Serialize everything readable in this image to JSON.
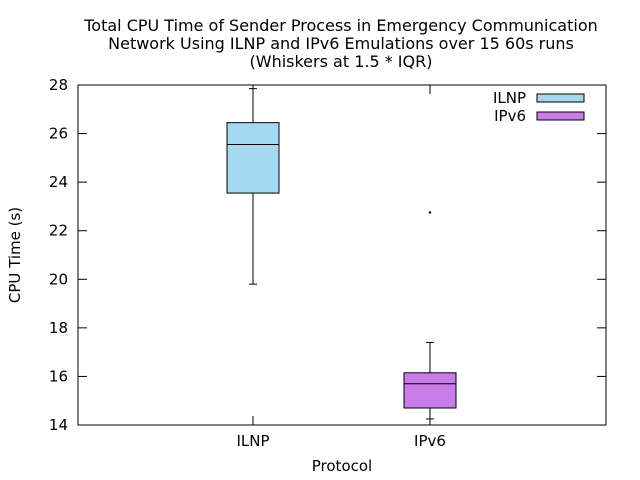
{
  "chart_data": {
    "type": "boxplot",
    "title_lines": [
      "Total CPU Time of Sender Process in Emergency Communication",
      "Network Using ILNP and IPv6 Emulations over 15 60s runs",
      "(Whiskers at 1.5 * IQR)"
    ],
    "xlabel": "Protocol",
    "ylabel": "CPU Time (s)",
    "ylim": [
      14,
      28
    ],
    "yticks": [
      14,
      16,
      18,
      20,
      22,
      24,
      26,
      28
    ],
    "categories": [
      "ILNP",
      "IPv6"
    ],
    "series": [
      {
        "name": "ILNP",
        "color": "#a6d8f2",
        "whisker_low": 19.8,
        "q1": 23.55,
        "median": 25.55,
        "q3": 26.45,
        "whisker_high": 27.85,
        "outliers": []
      },
      {
        "name": "IPv6",
        "color": "#c77ce8",
        "whisker_low": 14.25,
        "q1": 14.7,
        "median": 15.7,
        "q3": 16.15,
        "whisker_high": 17.4,
        "outliers": [
          22.75
        ]
      }
    ],
    "legend_position": "top-right",
    "grid": false
  }
}
